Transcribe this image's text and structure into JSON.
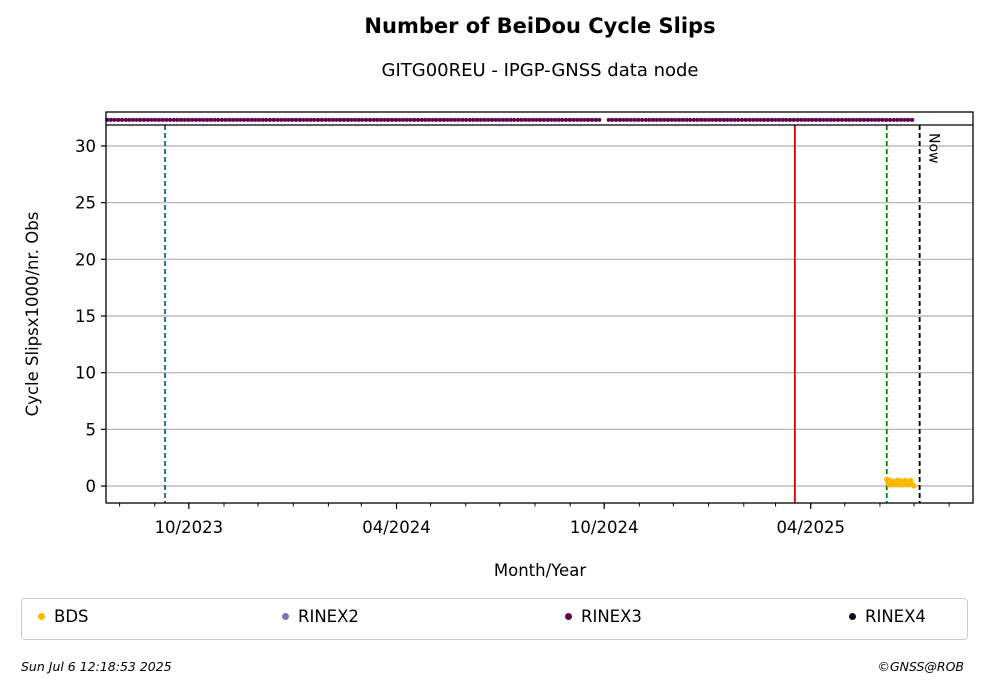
{
  "chart_data": {
    "type": "scatter",
    "title": "Number of BeiDou Cycle Slips",
    "subtitle": "GITG00REU - IPGP-GNSS data node",
    "xlabel": "Month/Year",
    "ylabel": "Cycle Slipsx1000/nr. Obs",
    "xlim": [
      "2023-07-20",
      "2025-08-22"
    ],
    "ylim": [
      -1.5,
      33
    ],
    "yticks": [
      0,
      5,
      10,
      15,
      20,
      25,
      30
    ],
    "xticks": [
      {
        "date": "2023-10-01",
        "label": "10/2023"
      },
      {
        "date": "2024-04-01",
        "label": "04/2024"
      },
      {
        "date": "2024-10-01",
        "label": "10/2024"
      },
      {
        "date": "2025-04-01",
        "label": "04/2025"
      }
    ],
    "grid": "horizontal",
    "top_band_y": 32.3,
    "series": [
      {
        "name": "BDS",
        "color": "#ffb700",
        "points": [
          {
            "x": "2025-06-07",
            "y": 0.6
          },
          {
            "x": "2025-06-08",
            "y": 0.3
          },
          {
            "x": "2025-06-09",
            "y": 0.1
          },
          {
            "x": "2025-06-10",
            "y": 0.5
          },
          {
            "x": "2025-06-11",
            "y": 0.2
          },
          {
            "x": "2025-06-12",
            "y": 0.1
          },
          {
            "x": "2025-06-13",
            "y": 0.4
          },
          {
            "x": "2025-06-14",
            "y": 0.3
          },
          {
            "x": "2025-06-15",
            "y": 0.1
          },
          {
            "x": "2025-06-16",
            "y": 0.5
          },
          {
            "x": "2025-06-17",
            "y": 0.2
          },
          {
            "x": "2025-06-18",
            "y": 0.5
          },
          {
            "x": "2025-06-19",
            "y": 0.1
          },
          {
            "x": "2025-06-20",
            "y": 0.4
          },
          {
            "x": "2025-06-21",
            "y": 0.3
          },
          {
            "x": "2025-06-22",
            "y": 0.1
          },
          {
            "x": "2025-06-23",
            "y": 0.5
          },
          {
            "x": "2025-06-24",
            "y": 0.2
          },
          {
            "x": "2025-06-25",
            "y": 0.4
          },
          {
            "x": "2025-06-26",
            "y": 0.1
          },
          {
            "x": "2025-06-27",
            "y": 0.3
          },
          {
            "x": "2025-06-28",
            "y": 0.5
          },
          {
            "x": "2025-06-29",
            "y": 0.2
          },
          {
            "x": "2025-06-30",
            "y": 0.1
          },
          {
            "x": "2025-07-01",
            "y": 0.0
          }
        ]
      },
      {
        "name": "RINEX2",
        "color": "#7b74b8",
        "points": []
      },
      {
        "name": "RINEX3",
        "color": "#5c004f",
        "segments": [
          {
            "start": "2023-07-21",
            "end": "2024-09-28"
          },
          {
            "start": "2024-10-05",
            "end": "2025-07-01"
          }
        ]
      },
      {
        "name": "RINEX4",
        "color": "#0b0b1f",
        "points": []
      }
    ],
    "vertical_lines": [
      {
        "date": "2023-09-10",
        "color": "#1f5fa8",
        "style": "dashed"
      },
      {
        "date": "2025-03-18",
        "color": "#cc0000",
        "style": "solid"
      },
      {
        "date": "2025-06-07",
        "color": "#008800",
        "style": "dashed"
      },
      {
        "date": "2025-07-06",
        "color": "#000000",
        "style": "dashed",
        "label": "Now"
      }
    ]
  },
  "legend": {
    "items": [
      {
        "label": "BDS",
        "color": "#ffb700"
      },
      {
        "label": "RINEX2",
        "color": "#7b74b8"
      },
      {
        "label": "RINEX3",
        "color": "#5c004f"
      },
      {
        "label": "RINEX4",
        "color": "#0b0b1f"
      }
    ]
  },
  "footer": {
    "timestamp": "Sun Jul  6 12:18:53 2025",
    "credit": "©GNSS@ROB"
  }
}
